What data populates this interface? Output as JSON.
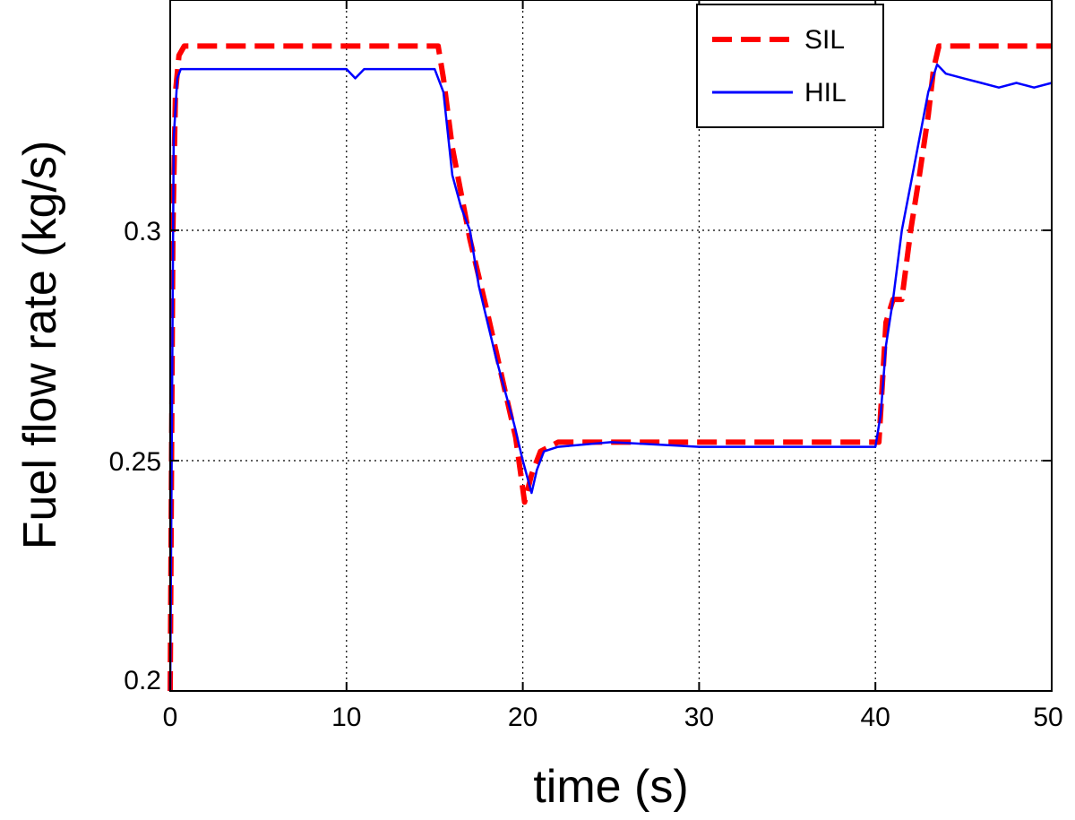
{
  "chart_data": {
    "type": "line",
    "title": "",
    "xlabel": "time (s)",
    "ylabel": "Fuel flow rate (kg/s)",
    "xlim": [
      0,
      50
    ],
    "ylim": [
      0.2,
      0.35
    ],
    "grid": true,
    "legend_position": "top-right",
    "x_ticks": [
      0,
      10,
      20,
      30,
      40,
      50
    ],
    "x_tick_labels": [
      "0",
      "10",
      "20",
      "30",
      "40",
      "50"
    ],
    "y_ticks": [
      0.2,
      0.25,
      0.3
    ],
    "y_tick_labels": [
      "0.2",
      "0.25",
      "0.3"
    ],
    "series": [
      {
        "name": "SIL",
        "color": "#ff0000",
        "style": "dashed",
        "x": [
          0,
          0.15,
          0.3,
          0.5,
          0.8,
          15.2,
          15.5,
          16,
          17,
          18,
          19,
          19.6,
          20.1,
          20.5,
          21,
          22,
          30,
          40.2,
          40.6,
          41,
          41.5,
          42,
          42.5,
          43,
          43.3,
          43.6,
          50
        ],
        "y": [
          0.2,
          0.3,
          0.33,
          0.338,
          0.34,
          0.34,
          0.333,
          0.318,
          0.298,
          0.282,
          0.265,
          0.255,
          0.241,
          0.247,
          0.252,
          0.254,
          0.254,
          0.254,
          0.28,
          0.285,
          0.285,
          0.3,
          0.312,
          0.325,
          0.335,
          0.34,
          0.34
        ]
      },
      {
        "name": "HIL",
        "color": "#0000ff",
        "style": "solid",
        "x": [
          0,
          0.2,
          0.4,
          0.6,
          1,
          5,
          10,
          10.5,
          11,
          15,
          15.5,
          16,
          16.5,
          17,
          17.5,
          18,
          18.5,
          19,
          19.5,
          20,
          20.5,
          20.8,
          21.2,
          22,
          25,
          30,
          35,
          40,
          40.3,
          40.6,
          41,
          41.5,
          42,
          42.5,
          43,
          43.5,
          44,
          45,
          46,
          47,
          48,
          49,
          50
        ],
        "y": [
          0.2,
          0.32,
          0.333,
          0.335,
          0.335,
          0.335,
          0.335,
          0.333,
          0.335,
          0.335,
          0.33,
          0.312,
          0.305,
          0.3,
          0.288,
          0.28,
          0.272,
          0.265,
          0.258,
          0.25,
          0.243,
          0.248,
          0.252,
          0.253,
          0.254,
          0.253,
          0.253,
          0.253,
          0.26,
          0.275,
          0.285,
          0.3,
          0.31,
          0.32,
          0.33,
          0.336,
          0.334,
          0.333,
          0.332,
          0.331,
          0.332,
          0.331,
          0.332
        ]
      }
    ]
  }
}
